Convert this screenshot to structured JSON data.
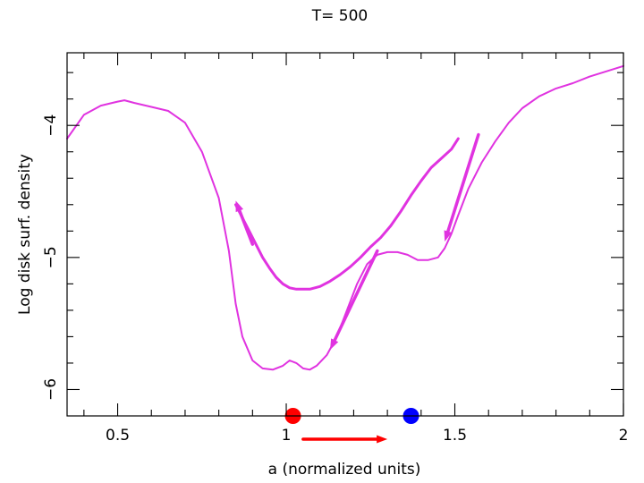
{
  "chart_data": {
    "type": "line",
    "title": "T=   500",
    "xlabel": "a (normalized units)",
    "ylabel": "Log disk surf. density",
    "xlim": [
      0.35,
      2.0
    ],
    "ylim": [
      -6.2,
      -3.45
    ],
    "xticks": [
      {
        "value": 0.5,
        "label": "0.5"
      },
      {
        "value": 1.0,
        "label": "1"
      },
      {
        "value": 1.5,
        "label": "1.5"
      },
      {
        "value": 2.0,
        "label": "2"
      }
    ],
    "yticks": [
      {
        "value": -4,
        "label": "−4"
      },
      {
        "value": -5,
        "label": "−5"
      },
      {
        "value": -6,
        "label": "−6"
      }
    ],
    "line_color": "#e033e0",
    "series": [
      {
        "x": [
          0.35,
          0.4,
          0.45,
          0.5,
          0.52,
          0.55,
          0.6,
          0.65,
          0.7,
          0.75,
          0.8,
          0.83,
          0.85,
          0.87,
          0.9,
          0.93,
          0.96,
          0.99,
          1.01,
          1.03,
          1.05,
          1.07,
          1.09,
          1.12,
          1.15,
          1.18,
          1.21,
          1.24,
          1.27,
          1.3,
          1.33,
          1.36,
          1.39,
          1.42,
          1.45,
          1.47,
          1.49,
          1.51,
          1.54,
          1.58,
          1.62,
          1.66,
          1.7,
          1.75,
          1.8,
          1.85,
          1.9,
          1.95,
          2.0
        ],
        "y": [
          -4.1,
          -3.92,
          -3.85,
          -3.82,
          -3.81,
          -3.83,
          -3.86,
          -3.89,
          -3.98,
          -4.2,
          -4.55,
          -4.95,
          -5.35,
          -5.6,
          -5.78,
          -5.84,
          -5.85,
          -5.82,
          -5.78,
          -5.8,
          -5.84,
          -5.85,
          -5.82,
          -5.74,
          -5.6,
          -5.4,
          -5.2,
          -5.05,
          -4.98,
          -4.96,
          -4.96,
          -4.98,
          -5.02,
          -5.02,
          -5.0,
          -4.93,
          -4.82,
          -4.68,
          -4.48,
          -4.28,
          -4.12,
          -3.98,
          -3.87,
          -3.78,
          -3.72,
          -3.68,
          -3.63,
          -3.59,
          -3.55
        ]
      },
      {
        "x": [
          0.85,
          0.87,
          0.89,
          0.91,
          0.93,
          0.95,
          0.97,
          0.99,
          1.01,
          1.03,
          1.05,
          1.07,
          1.1,
          1.13,
          1.16,
          1.19,
          1.22,
          1.25,
          1.28,
          1.31,
          1.34,
          1.37,
          1.4,
          1.43,
          1.46,
          1.49,
          1.51
        ],
        "y": [
          -4.6,
          -4.7,
          -4.8,
          -4.9,
          -5.0,
          -5.08,
          -5.15,
          -5.2,
          -5.23,
          -5.24,
          -5.24,
          -5.24,
          -5.22,
          -5.18,
          -5.13,
          -5.07,
          -5.0,
          -4.92,
          -4.85,
          -4.76,
          -4.65,
          -4.53,
          -4.42,
          -4.32,
          -4.25,
          -4.18,
          -4.1
        ]
      }
    ],
    "annotations": {
      "arrows": [
        {
          "from": [
            0.9,
            -4.9
          ],
          "to": [
            0.85,
            -4.57
          ]
        },
        {
          "from": [
            1.27,
            -4.95
          ],
          "to": [
            1.13,
            -5.7
          ]
        },
        {
          "from": [
            1.57,
            -4.07
          ],
          "to": [
            1.47,
            -4.88
          ]
        }
      ],
      "bottom_arrow": {
        "from": 1.05,
        "to": 1.3,
        "color": "#ff0000"
      },
      "markers": [
        {
          "x": 1.02,
          "color": "#ff0000"
        },
        {
          "x": 1.37,
          "color": "#0000ff"
        }
      ]
    }
  }
}
